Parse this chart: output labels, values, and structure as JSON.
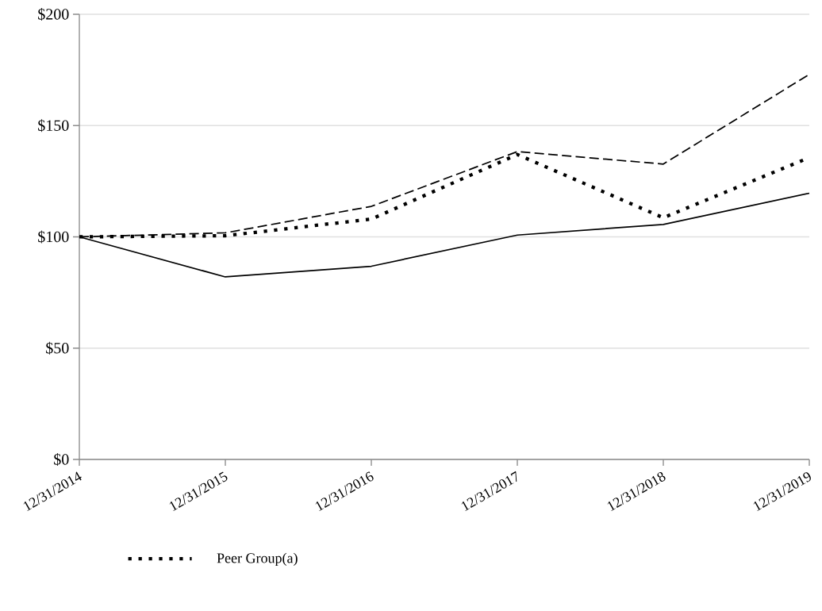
{
  "chart_data": {
    "type": "line",
    "categories": [
      "12/31/2014",
      "12/31/2015",
      "12/31/2016",
      "12/31/2017",
      "12/31/2018",
      "12/31/2019"
    ],
    "series": [
      {
        "color": "#000000",
        "line_style": "solid",
        "values": [
          100,
          82.0,
          86.8,
          100.8,
          105.6,
          119.6
        ]
      },
      {
        "color": "#000000",
        "line_style": "dashed",
        "values": [
          100,
          101.8,
          113.7,
          138.3,
          132.7,
          173
        ]
      },
      {
        "name": "Peer Group(a)",
        "color": "#000000",
        "line_style": "dotted",
        "values": [
          100,
          100.5,
          108,
          137,
          108.6,
          135.6
        ]
      }
    ],
    "ylim": [
      0,
      200
    ],
    "yticks": [
      {
        "value": 0,
        "label": "$0"
      },
      {
        "value": 50,
        "label": "$50"
      },
      {
        "value": 100,
        "label": "$100"
      },
      {
        "value": 150,
        "label": "$150"
      },
      {
        "value": 200,
        "label": "$200"
      }
    ],
    "grid": "y",
    "legend": "bottom",
    "marker": "none"
  }
}
